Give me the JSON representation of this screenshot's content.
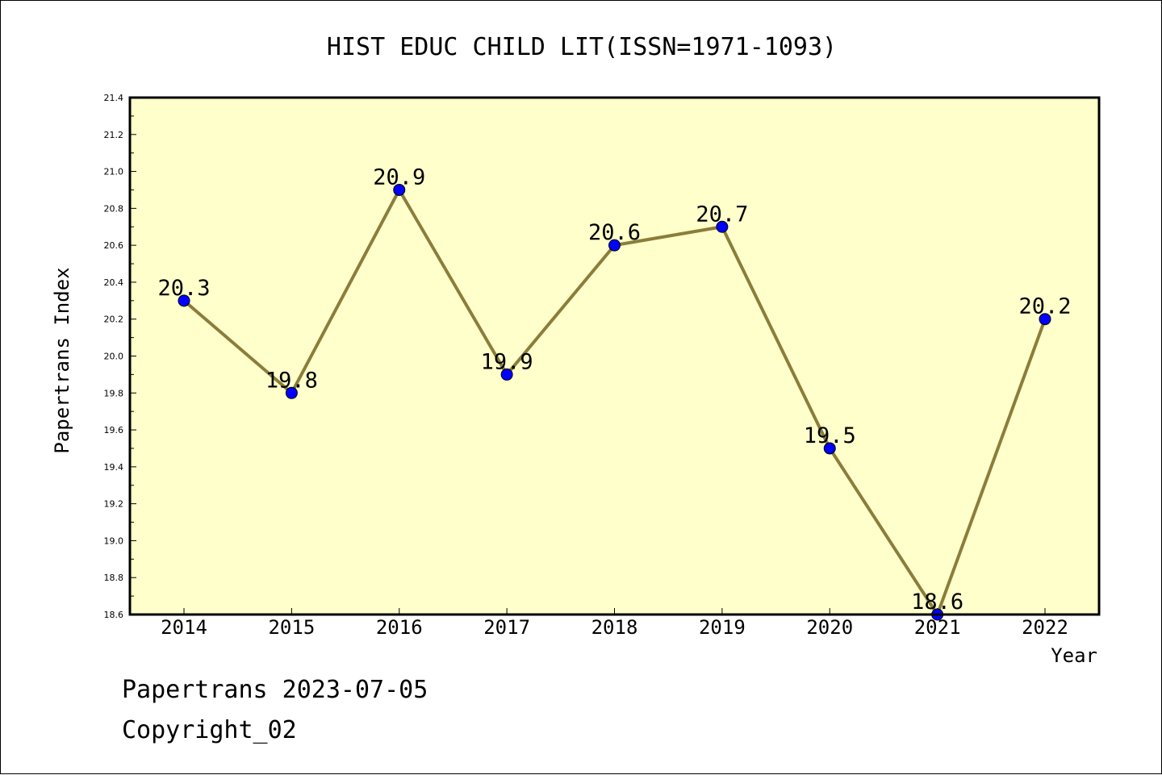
{
  "chart_data": {
    "type": "line",
    "title": "HIST EDUC CHILD LIT(ISSN=1971-1093)",
    "xlabel": "Year",
    "ylabel": "Papertrans Index",
    "categories": [
      "2014",
      "2015",
      "2016",
      "2017",
      "2018",
      "2019",
      "2020",
      "2021",
      "2022"
    ],
    "values": [
      20.3,
      19.8,
      20.9,
      19.9,
      20.6,
      20.7,
      19.5,
      18.6,
      20.2
    ],
    "value_labels": [
      "20.3",
      "19.8",
      "20.9",
      "19.9",
      "20.6",
      "20.7",
      "19.5",
      "18.6",
      "20.2"
    ],
    "ylim": [
      18.6,
      21.4
    ],
    "yticks": [
      "18.6",
      "18.8",
      "19.0",
      "19.2",
      "19.4",
      "19.6",
      "19.8",
      "20.0",
      "20.2",
      "20.4",
      "20.6",
      "20.8",
      "21.0",
      "21.2",
      "21.4"
    ],
    "grid": false,
    "colors": {
      "plot_background": "#ffffcc",
      "line": "#8b7d3a",
      "marker": "#0000ff"
    }
  },
  "footer": {
    "line1": "Papertrans 2023-07-05",
    "line2": "Copyright_02"
  }
}
